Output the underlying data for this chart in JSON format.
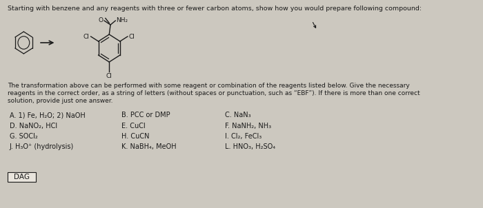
{
  "title": "Starting with benzene and any reagents with three or fewer carbon atoms, show how you would prepare following compound:",
  "paragraph1": "The transformation above can be performed with some reagent or combination of the reagents listed below. Give the necessary",
  "paragraph2": "reagents in the correct order, as a string of letters (without spaces or punctuation, such as “EBF”). If there is more than one correct",
  "paragraph3": "solution, provide just one answer.",
  "reagents": [
    [
      "A. 1) Fe, H₂O; 2) NaOH",
      "B. PCC or DMP",
      "C. NaN₃"
    ],
    [
      "D. NaNO₂, HCl",
      "E. CuCl",
      "F. NaNH₂, NH₃"
    ],
    [
      "G. SOCl₂",
      "H. CuCN",
      "I. Cl₂, FeCl₃"
    ],
    [
      "J. H₃O⁺ (hydrolysis)",
      "K. NaBH₄, MeOH",
      "L. HNO₃, H₂SO₄"
    ]
  ],
  "answer": "DAG",
  "background_color": "#ccc8bf",
  "text_color": "#1a1a1a",
  "answer_box_color": "#e8e4dc",
  "font_size_title": 6.8,
  "font_size_paragraph": 6.5,
  "font_size_reagents": 7.0,
  "font_size_answer": 7.5,
  "font_size_chem": 6.5
}
